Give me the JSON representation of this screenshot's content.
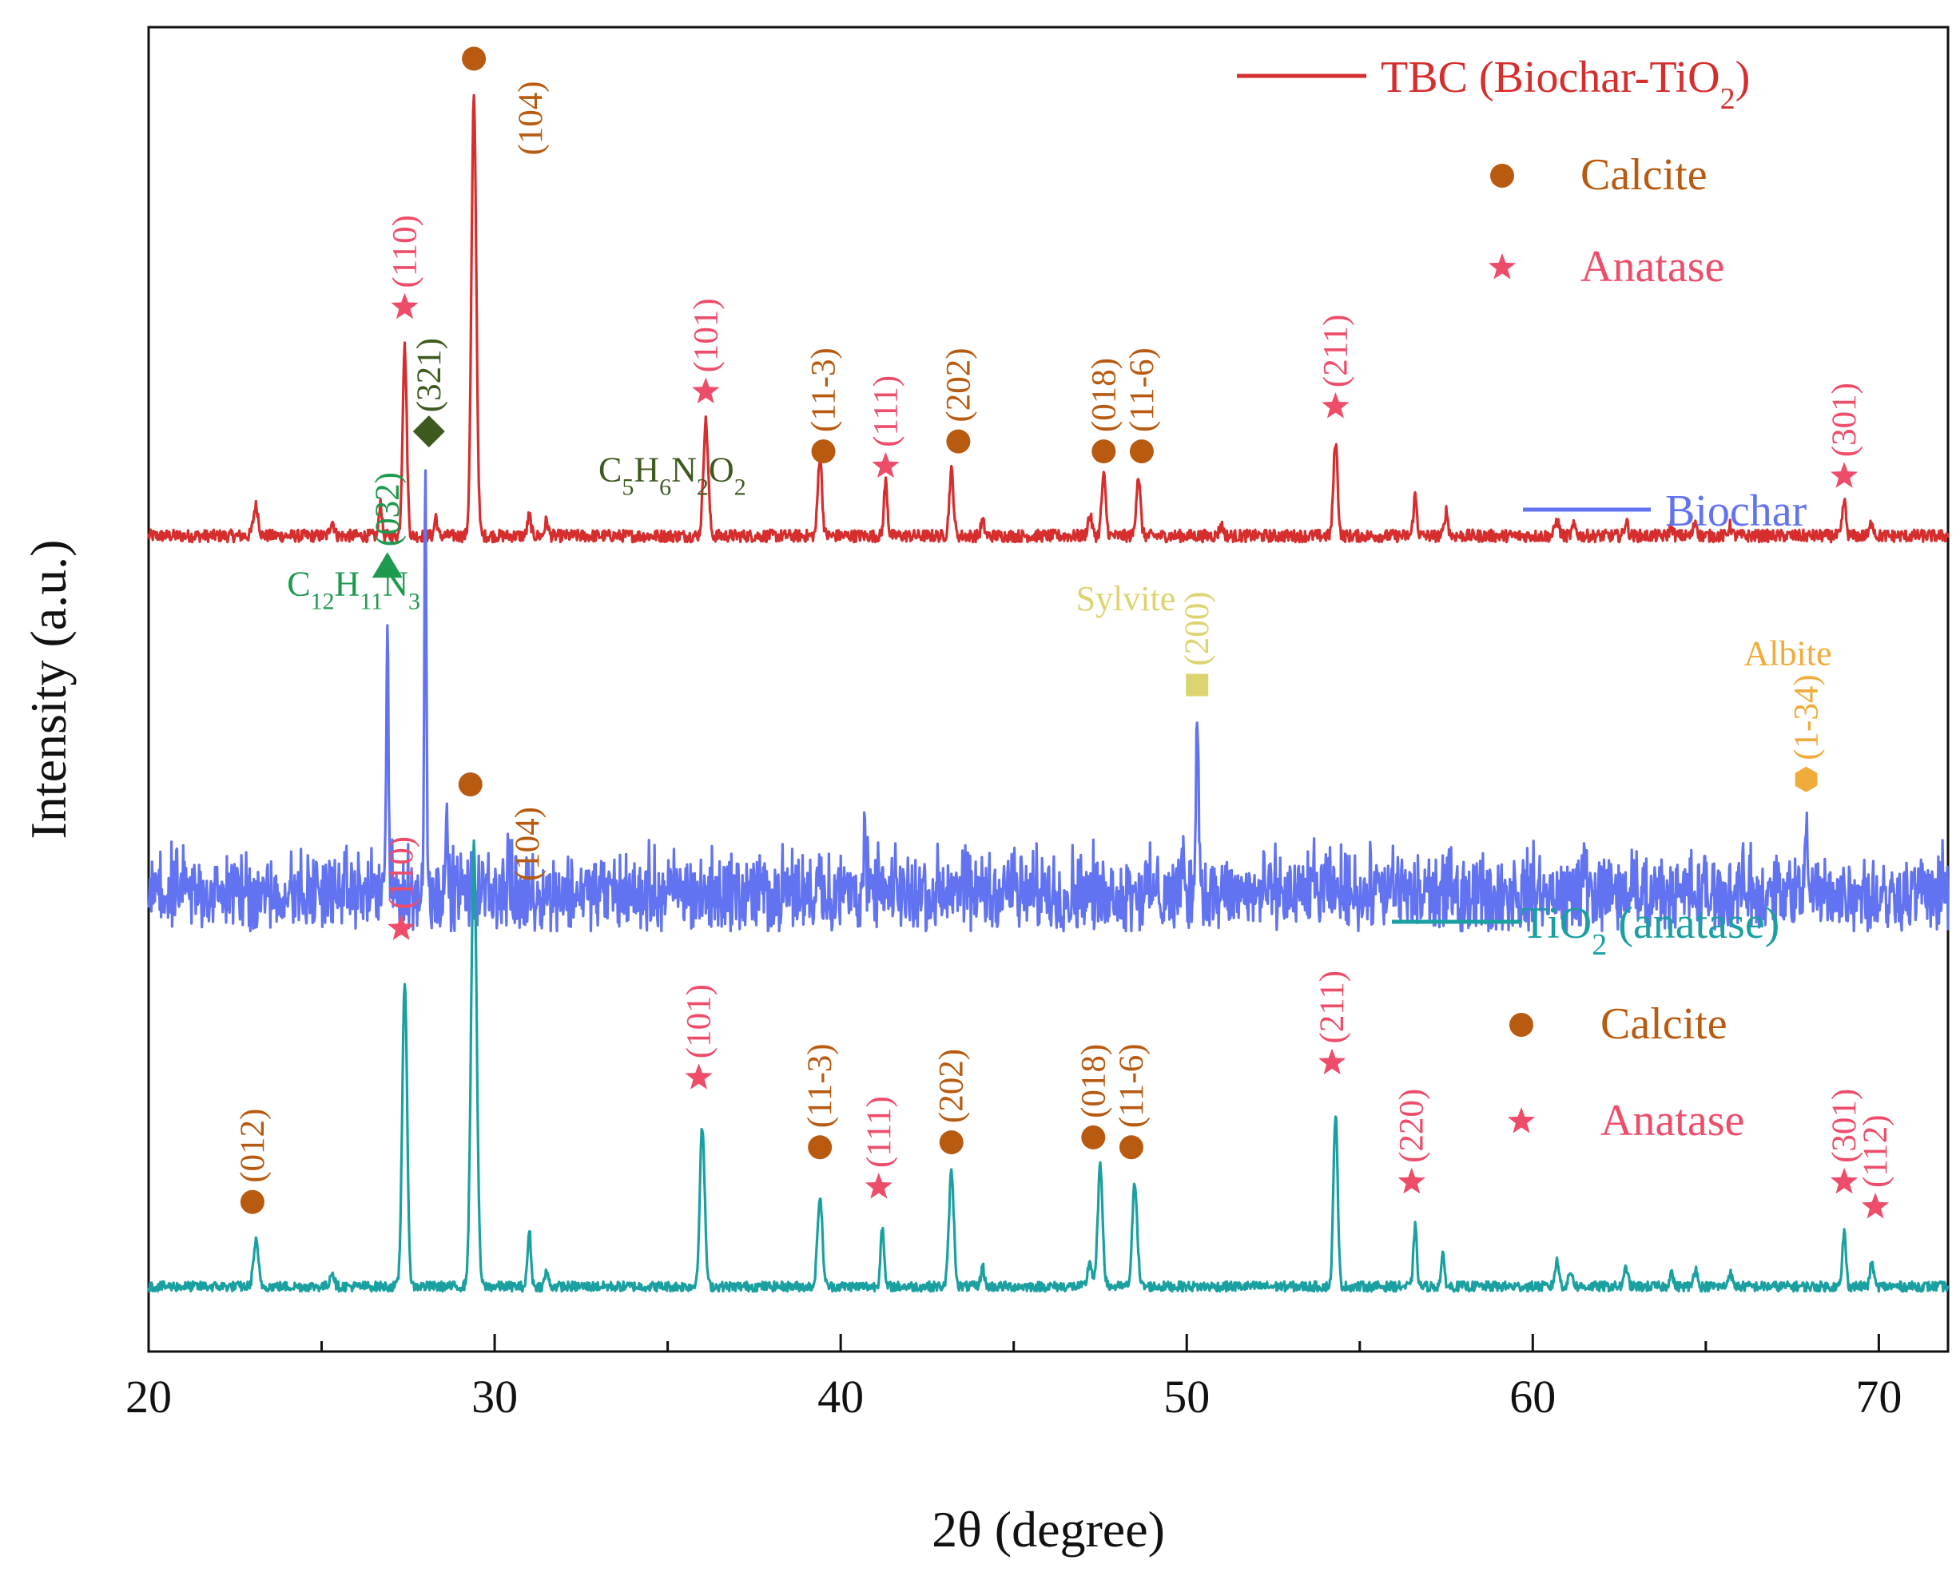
{
  "chart_data": {
    "type": "line",
    "xlabel": "2θ (degree)",
    "ylabel": "Intensity (a.u.)",
    "xlim": [
      20,
      72
    ],
    "xticks": [
      20,
      30,
      40,
      50,
      60,
      70
    ],
    "yticks": [],
    "series": [
      {
        "name": "TBC (Biochar-TiO₂)",
        "legend": "TBC (Biochar-TiO<sub>2</sub>)",
        "color": "#d62d2d",
        "baseline": 16.2,
        "noise": 0.25,
        "peaks": [
          [
            23.1,
            0.6,
            0.07
          ],
          [
            25.3,
            0.3,
            0.06
          ],
          [
            26.7,
            0.7,
            0.04
          ],
          [
            27.4,
            3.8,
            0.06
          ],
          [
            28.3,
            0.4,
            0.04
          ],
          [
            29.4,
            8.8,
            0.07
          ],
          [
            31.0,
            0.4,
            0.05
          ],
          [
            31.5,
            0.3,
            0.05
          ],
          [
            36.1,
            2.3,
            0.07
          ],
          [
            39.4,
            1.6,
            0.06
          ],
          [
            41.3,
            1.1,
            0.05
          ],
          [
            43.2,
            1.3,
            0.06
          ],
          [
            44.1,
            0.3,
            0.05
          ],
          [
            47.2,
            0.4,
            0.06
          ],
          [
            47.6,
            1.2,
            0.06
          ],
          [
            48.6,
            1.2,
            0.06
          ],
          [
            51.0,
            0.2,
            0.06
          ],
          [
            54.3,
            1.9,
            0.06
          ],
          [
            56.6,
            0.8,
            0.05
          ],
          [
            57.5,
            0.5,
            0.05
          ],
          [
            60.7,
            0.3,
            0.06
          ],
          [
            61.2,
            0.2,
            0.06
          ],
          [
            62.7,
            0.3,
            0.05
          ],
          [
            64.0,
            0.2,
            0.05
          ],
          [
            64.7,
            0.3,
            0.05
          ],
          [
            65.7,
            0.2,
            0.05
          ],
          [
            69.0,
            0.7,
            0.05
          ],
          [
            69.8,
            0.3,
            0.05
          ]
        ]
      },
      {
        "name": "Biochar",
        "legend": "Biochar",
        "color": "#6273f2",
        "baseline": 8.8,
        "noise": 1.2,
        "peaks": [
          [
            26.9,
            6.0,
            0.03
          ],
          [
            28.0,
            8.6,
            0.03
          ],
          [
            28.6,
            1.2,
            0.04
          ],
          [
            30.4,
            0.8,
            0.03
          ],
          [
            39.4,
            0.9,
            0.04
          ],
          [
            40.7,
            1.0,
            0.04
          ],
          [
            45.0,
            0.8,
            0.03
          ],
          [
            49.9,
            0.6,
            0.05
          ],
          [
            50.3,
            3.7,
            0.04
          ],
          [
            61.5,
            0.8,
            0.04
          ],
          [
            67.9,
            1.9,
            0.03
          ]
        ]
      },
      {
        "name": "TiO₂ (anatase)",
        "legend": "TiO<sub>2</sub> (anatase)",
        "color": "#1aa0a0",
        "baseline": 1.1,
        "noise": 0.2,
        "peaks": [
          [
            23.1,
            0.9,
            0.07
          ],
          [
            25.3,
            0.3,
            0.06
          ],
          [
            27.4,
            6.1,
            0.07
          ],
          [
            29.4,
            8.9,
            0.08
          ],
          [
            31.0,
            1.1,
            0.05
          ],
          [
            31.5,
            0.3,
            0.05
          ],
          [
            36.0,
            3.2,
            0.07
          ],
          [
            39.4,
            1.8,
            0.07
          ],
          [
            41.2,
            1.2,
            0.05
          ],
          [
            43.2,
            2.3,
            0.07
          ],
          [
            44.1,
            0.4,
            0.05
          ],
          [
            47.2,
            0.5,
            0.06
          ],
          [
            47.5,
            2.4,
            0.07
          ],
          [
            48.5,
            2.1,
            0.07
          ],
          [
            54.3,
            3.5,
            0.06
          ],
          [
            56.6,
            1.2,
            0.05
          ],
          [
            57.4,
            0.6,
            0.05
          ],
          [
            60.7,
            0.5,
            0.06
          ],
          [
            61.1,
            0.3,
            0.06
          ],
          [
            62.7,
            0.4,
            0.05
          ],
          [
            64.0,
            0.3,
            0.05
          ],
          [
            64.7,
            0.4,
            0.05
          ],
          [
            65.7,
            0.3,
            0.05
          ],
          [
            69.0,
            1.1,
            0.05
          ],
          [
            69.8,
            0.5,
            0.05
          ]
        ]
      }
    ],
    "panels": [
      {
        "legend_items": [
          {
            "marker": "circle",
            "color": "#b85a10",
            "label": "Calcite"
          },
          {
            "marker": "star",
            "color": "#ee4d6a",
            "label": "Anatase"
          }
        ],
        "annotations": [
          {
            "x": 27.4,
            "y": 20.8,
            "marker": "star",
            "color": "#ee4d6a",
            "label": "(110)"
          },
          {
            "x": 29.4,
            "y": 25.8,
            "marker": "circle",
            "color": "#b85a10",
            "label": "(104)",
            "label_offset": "right"
          },
          {
            "x": 36.1,
            "y": 19.1,
            "marker": "star",
            "color": "#ee4d6a",
            "label": "(101)"
          },
          {
            "x": 39.5,
            "y": 17.9,
            "marker": "circle",
            "color": "#b85a10",
            "label": "(11-3)"
          },
          {
            "x": 41.3,
            "y": 17.6,
            "marker": "star",
            "color": "#ee4d6a",
            "label": "(111)"
          },
          {
            "x": 43.4,
            "y": 18.1,
            "marker": "circle",
            "color": "#b85a10",
            "label": "(202)"
          },
          {
            "x": 47.6,
            "y": 17.9,
            "marker": "circle",
            "color": "#b85a10",
            "label": "(018)"
          },
          {
            "x": 48.7,
            "y": 17.9,
            "marker": "circle",
            "color": "#b85a10",
            "label": "(11-6)"
          },
          {
            "x": 54.3,
            "y": 18.8,
            "marker": "star",
            "color": "#ee4d6a",
            "label": "(211)"
          },
          {
            "x": 69.0,
            "y": 17.4,
            "marker": "star",
            "color": "#ee4d6a",
            "label": "(301)"
          }
        ]
      },
      {
        "legend_items": [],
        "annotations": [
          {
            "x": 26.9,
            "y": 15.6,
            "marker": "triangle",
            "color": "#1e9a4e",
            "label": "(032)"
          },
          {
            "x": 28.1,
            "y": 18.3,
            "marker": "diamond",
            "color": "#3e5a1e",
            "label": "(321)"
          },
          {
            "x": 50.3,
            "y": 13.2,
            "marker": "square",
            "color": "#dcd470",
            "label": "(200)"
          },
          {
            "x": 67.9,
            "y": 11.3,
            "marker": "hexagon",
            "color": "#f0ac3a",
            "label": "(1-34)"
          }
        ],
        "texts": [
          {
            "html": "C<tspan baseline-shift=\"sub\" font-size=\"30\">12</tspan>H<tspan baseline-shift=\"sub\" font-size=\"30\">11</tspan>N<tspan baseline-shift=\"sub\" font-size=\"30\">3</tspan>",
            "plain": "C12H11N3",
            "x": 24.0,
            "y": 15.0,
            "color": "#1e9a4e"
          },
          {
            "html": "C<tspan baseline-shift=\"sub\" font-size=\"30\">5</tspan>H<tspan baseline-shift=\"sub\" font-size=\"30\">6</tspan>N<tspan baseline-shift=\"sub\" font-size=\"30\">2</tspan>O<tspan baseline-shift=\"sub\" font-size=\"30\">2</tspan>",
            "plain": "C5H6N2O2",
            "x": 33.0,
            "y": 17.3,
            "color": "#3e5a1e"
          },
          {
            "html": "Sylvite",
            "plain": "Sylvite",
            "x": 46.8,
            "y": 14.7,
            "color": "#dcd470"
          },
          {
            "html": "Albite",
            "plain": "Albite",
            "x": 66.1,
            "y": 13.6,
            "color": "#f0ac3a"
          }
        ]
      },
      {
        "legend_items": [
          {
            "marker": "circle",
            "color": "#b85a10",
            "label": "Calcite"
          },
          {
            "marker": "star",
            "color": "#ee4d6a",
            "label": "Anatase"
          }
        ],
        "annotations": [
          {
            "x": 23.0,
            "y": 2.8,
            "marker": "circle",
            "color": "#b85a10",
            "label": "(012)"
          },
          {
            "x": 27.3,
            "y": 8.3,
            "marker": "star",
            "color": "#ee4d6a",
            "label": "(110)"
          },
          {
            "x": 29.3,
            "y": 11.2,
            "marker": "circle",
            "color": "#b85a10",
            "label": "(104)",
            "label_offset": "right"
          },
          {
            "x": 35.9,
            "y": 5.3,
            "marker": "star",
            "color": "#ee4d6a",
            "label": "(101)"
          },
          {
            "x": 39.4,
            "y": 3.9,
            "marker": "circle",
            "color": "#b85a10",
            "label": "(11-3)"
          },
          {
            "x": 41.1,
            "y": 3.1,
            "marker": "star",
            "color": "#ee4d6a",
            "label": "(111)"
          },
          {
            "x": 43.2,
            "y": 4.0,
            "marker": "circle",
            "color": "#b85a10",
            "label": "(202)"
          },
          {
            "x": 47.3,
            "y": 4.1,
            "marker": "circle",
            "color": "#b85a10",
            "label": "(018)"
          },
          {
            "x": 48.4,
            "y": 3.9,
            "marker": "circle",
            "color": "#b85a10",
            "label": "(11-6)"
          },
          {
            "x": 54.2,
            "y": 5.6,
            "marker": "star",
            "color": "#ee4d6a",
            "label": "(211)"
          },
          {
            "x": 56.5,
            "y": 3.2,
            "marker": "star",
            "color": "#ee4d6a",
            "label": "(220)"
          },
          {
            "x": 69.0,
            "y": 3.2,
            "marker": "star",
            "color": "#ee4d6a",
            "label": "(301)"
          },
          {
            "x": 69.9,
            "y": 2.7,
            "marker": "star",
            "color": "#ee4d6a",
            "label": "(112)"
          }
        ]
      }
    ]
  }
}
